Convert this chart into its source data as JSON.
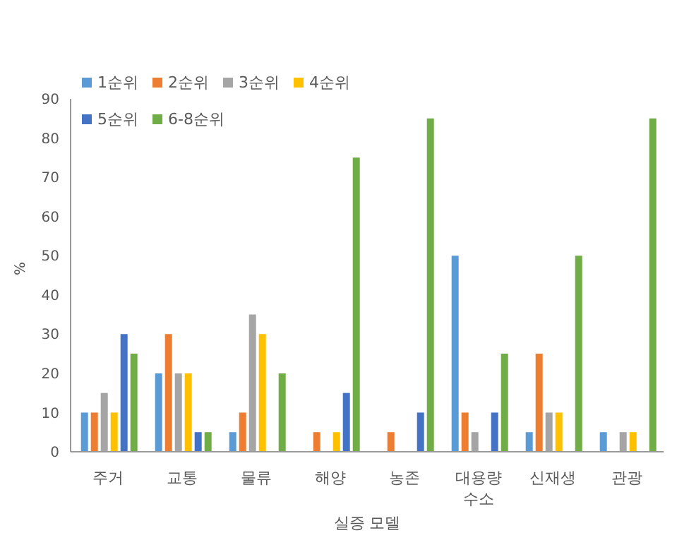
{
  "chart_data": {
    "type": "bar",
    "xlabel": "실증 모델",
    "ylabel": "%",
    "categories": [
      "주거",
      "교통",
      "물류",
      "해양",
      "농존",
      "대용량 수소",
      "신재생",
      "관광"
    ],
    "series": [
      {
        "name": "1순위",
        "color": "#5b9bd5",
        "values": [
          10,
          20,
          5,
          0,
          0,
          50,
          5,
          5
        ]
      },
      {
        "name": "2순위",
        "color": "#ed7d31",
        "values": [
          10,
          30,
          10,
          5,
          5,
          10,
          25,
          0
        ]
      },
      {
        "name": "3순위",
        "color": "#a5a5a5",
        "values": [
          15,
          20,
          35,
          0,
          0,
          5,
          10,
          5
        ]
      },
      {
        "name": "4순위",
        "color": "#ffc000",
        "values": [
          10,
          20,
          30,
          5,
          0,
          0,
          10,
          5
        ]
      },
      {
        "name": "5순위",
        "color": "#4472c4",
        "values": [
          30,
          5,
          0,
          15,
          10,
          10,
          0,
          0
        ]
      },
      {
        "name": "6-8순위",
        "color": "#70ad47",
        "values": [
          25,
          5,
          20,
          75,
          85,
          25,
          50,
          85
        ]
      }
    ],
    "ylim": [
      0,
      90
    ],
    "yticks": [
      0,
      10,
      20,
      30,
      40,
      50,
      60,
      70,
      80,
      90
    ],
    "grid": false,
    "legend": "top left"
  }
}
